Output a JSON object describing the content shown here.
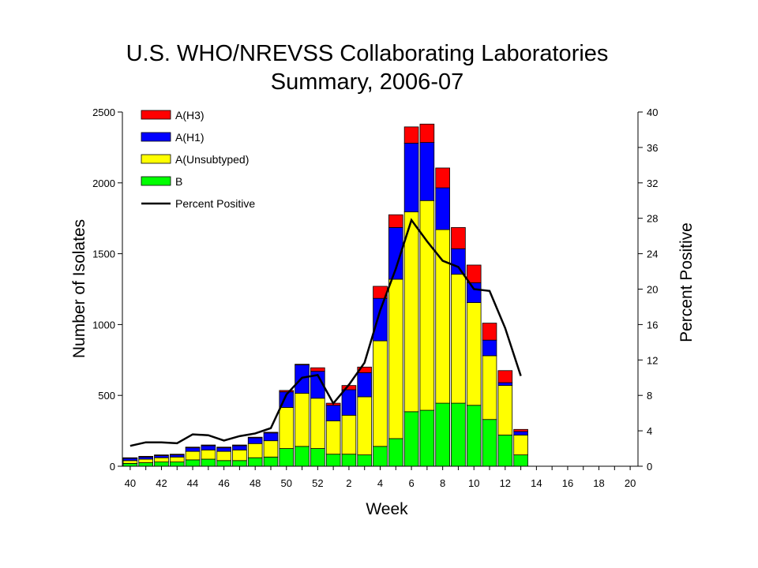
{
  "chart_data": {
    "type": "bar",
    "title": [
      "U.S. WHO/NREVSS Collaborating Laboratories",
      "Summary, 2006-07"
    ],
    "xlabel": "Week",
    "ylabel": "Number of Isolates",
    "y2label": "Percent Positive",
    "ylim": [
      0,
      2500
    ],
    "y2lim": [
      0,
      40
    ],
    "yticks": [
      0,
      500,
      1000,
      1500,
      2000,
      2500
    ],
    "y2ticks": [
      0,
      4,
      8,
      12,
      16,
      20,
      24,
      28,
      32,
      36,
      40
    ],
    "xticks": [
      "40",
      "42",
      "44",
      "46",
      "48",
      "50",
      "52",
      "2",
      "4",
      "6",
      "8",
      "10",
      "12",
      "14",
      "16",
      "18",
      "20"
    ],
    "weeks": [
      "40",
      "41",
      "42",
      "43",
      "44",
      "45",
      "46",
      "47",
      "48",
      "49",
      "50",
      "51",
      "52",
      "1",
      "2",
      "3",
      "4",
      "5",
      "6",
      "7",
      "8",
      "9",
      "10",
      "11",
      "12",
      "13",
      "14",
      "15",
      "16",
      "17",
      "18",
      "19",
      "20"
    ],
    "stacked": true,
    "legend_position": "top-left",
    "series": [
      {
        "name": "B",
        "color": "#00ff00",
        "values": [
          20,
          25,
          30,
          30,
          45,
          50,
          40,
          40,
          60,
          65,
          125,
          140,
          125,
          85,
          85,
          80,
          140,
          195,
          385,
          395,
          445,
          445,
          430,
          330,
          220,
          80,
          0,
          0,
          0,
          0,
          0,
          0,
          0
        ]
      },
      {
        "name": "A(Unsubtyped)",
        "color": "#ffff00",
        "values": [
          20,
          25,
          30,
          35,
          60,
          65,
          65,
          75,
          100,
          115,
          290,
          375,
          355,
          235,
          275,
          410,
          745,
          1125,
          1410,
          1480,
          1225,
          910,
          725,
          450,
          350,
          140,
          0,
          0,
          0,
          0,
          0,
          0,
          0
        ]
      },
      {
        "name": "A(H1)",
        "color": "#0000ff",
        "values": [
          15,
          15,
          15,
          15,
          25,
          30,
          25,
          30,
          40,
          55,
          110,
          200,
          190,
          110,
          180,
          170,
          300,
          365,
          485,
          410,
          295,
          180,
          140,
          110,
          20,
          25,
          0,
          0,
          0,
          0,
          0,
          0,
          0
        ]
      },
      {
        "name": "A(H3)",
        "color": "#ff0000",
        "values": [
          5,
          5,
          5,
          5,
          5,
          5,
          5,
          5,
          5,
          5,
          10,
          5,
          25,
          15,
          30,
          40,
          85,
          90,
          115,
          130,
          140,
          150,
          125,
          120,
          85,
          15,
          0,
          0,
          0,
          0,
          0,
          0,
          0
        ]
      }
    ],
    "line": {
      "name": "Percent Positive",
      "color": "#000000",
      "values": [
        2.3,
        2.7,
        2.7,
        2.6,
        3.6,
        3.5,
        2.9,
        3.4,
        3.7,
        4.3,
        8.1,
        10.0,
        10.3,
        7.1,
        9.2,
        11.7,
        17.6,
        22.3,
        27.8,
        25.4,
        23.2,
        22.5,
        20.0,
        19.8,
        15.6,
        10.2
      ]
    }
  }
}
